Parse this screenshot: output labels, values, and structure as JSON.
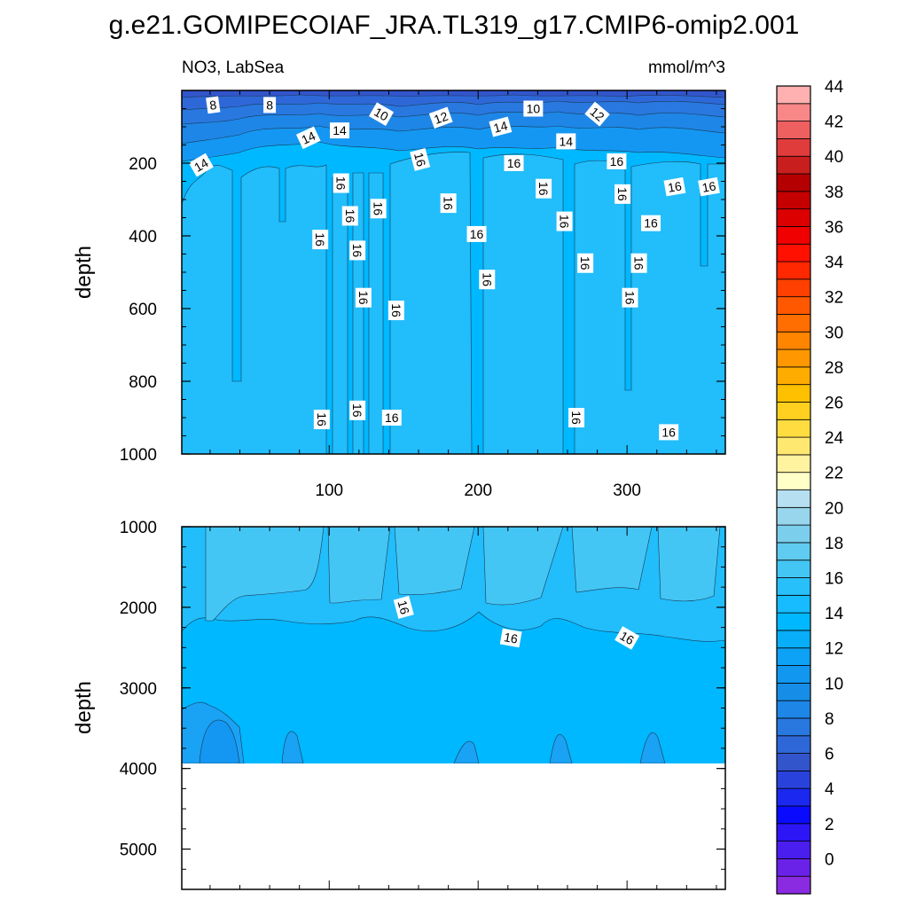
{
  "title": "g.e21.GOMIPECOIAF_JRA.TL319_g17.CMIP6-omip2.001",
  "chart_data": {
    "type": "heatmap",
    "variable_label": "NO3, LabSea",
    "units_label": "mmol/m^3",
    "x_ticks": [
      "100",
      "200",
      "300"
    ],
    "x_tick_values": [
      100,
      200,
      300
    ],
    "xlim": [
      1,
      366
    ],
    "panels": [
      {
        "name": "upper",
        "ylabel": "depth",
        "ylim": [
          0,
          1000
        ],
        "y_ticks": [
          "200",
          "400",
          "600",
          "800",
          "1000"
        ],
        "y_tick_values": [
          200,
          400,
          600,
          800,
          1000
        ],
        "contour_labels": [
          {
            "t": "8",
            "x": 22,
            "y": 40,
            "r": -8
          },
          {
            "t": "8",
            "x": 60,
            "y": 40,
            "r": 0
          },
          {
            "t": "10",
            "x": 135,
            "y": 65,
            "r": 30
          },
          {
            "t": "12",
            "x": 175,
            "y": 75,
            "r": -20
          },
          {
            "t": "10",
            "x": 237,
            "y": 50,
            "r": 0
          },
          {
            "t": "12",
            "x": 280,
            "y": 65,
            "r": 40
          },
          {
            "t": "14",
            "x": 107,
            "y": 110,
            "r": 0
          },
          {
            "t": "14",
            "x": 86,
            "y": 130,
            "r": -25
          },
          {
            "t": "14",
            "x": 215,
            "y": 100,
            "r": -15
          },
          {
            "t": "14",
            "x": 259,
            "y": 140,
            "r": 0
          },
          {
            "t": "14",
            "x": 14,
            "y": 205,
            "r": -30
          },
          {
            "t": "16",
            "x": 161,
            "y": 190,
            "r": 75
          },
          {
            "t": "16",
            "x": 224,
            "y": 200,
            "r": 0
          },
          {
            "t": "16",
            "x": 293,
            "y": 195,
            "r": 0
          },
          {
            "t": "16",
            "x": 108,
            "y": 255,
            "r": 90
          },
          {
            "t": "16",
            "x": 244,
            "y": 270,
            "r": 90
          },
          {
            "t": "16",
            "x": 297,
            "y": 285,
            "r": 90
          },
          {
            "t": "16",
            "x": 332,
            "y": 265,
            "r": -10
          },
          {
            "t": "16",
            "x": 355,
            "y": 265,
            "r": -10
          },
          {
            "t": "16",
            "x": 180,
            "y": 310,
            "r": 90
          },
          {
            "t": "16",
            "x": 133,
            "y": 325,
            "r": 90
          },
          {
            "t": "16",
            "x": 114,
            "y": 345,
            "r": 90
          },
          {
            "t": "16",
            "x": 258,
            "y": 360,
            "r": 90
          },
          {
            "t": "16",
            "x": 316,
            "y": 365,
            "r": 0
          },
          {
            "t": "16",
            "x": 94,
            "y": 410,
            "r": 90
          },
          {
            "t": "16",
            "x": 199,
            "y": 395,
            "r": 0
          },
          {
            "t": "16",
            "x": 119,
            "y": 440,
            "r": 90
          },
          {
            "t": "16",
            "x": 272,
            "y": 475,
            "r": 90
          },
          {
            "t": "16",
            "x": 308,
            "y": 475,
            "r": 90
          },
          {
            "t": "16",
            "x": 206,
            "y": 520,
            "r": 90
          },
          {
            "t": "16",
            "x": 123,
            "y": 570,
            "r": 90
          },
          {
            "t": "16",
            "x": 302,
            "y": 570,
            "r": 90
          },
          {
            "t": "16",
            "x": 145,
            "y": 605,
            "r": 90
          },
          {
            "t": "16",
            "x": 95,
            "y": 905,
            "r": 90
          },
          {
            "t": "16",
            "x": 119,
            "y": 880,
            "r": 90
          },
          {
            "t": "16",
            "x": 142,
            "y": 900,
            "r": 0
          },
          {
            "t": "16",
            "x": 266,
            "y": 900,
            "r": 90
          },
          {
            "t": "16",
            "x": 328,
            "y": 940,
            "r": 0
          }
        ]
      },
      {
        "name": "lower",
        "ylabel": "depth",
        "ylim": [
          1000,
          5500
        ],
        "y_ticks": [
          "1000",
          "2000",
          "3000",
          "4000",
          "5000"
        ],
        "y_tick_values": [
          1000,
          2000,
          3000,
          4000,
          5000
        ],
        "no_data_below": 3870,
        "contour_labels": [
          {
            "t": "16",
            "x": 150,
            "y": 2000,
            "r": 75
          },
          {
            "t": "16",
            "x": 222,
            "y": 2380,
            "r": 10
          },
          {
            "t": "16",
            "x": 300,
            "y": 2380,
            "r": 30
          }
        ]
      }
    ],
    "colorbar": {
      "labels": [
        "0",
        "2",
        "4",
        "6",
        "8",
        "10",
        "12",
        "14",
        "16",
        "18",
        "20",
        "22",
        "24",
        "26",
        "28",
        "30",
        "32",
        "34",
        "36",
        "38",
        "40",
        "42",
        "44"
      ],
      "label_values": [
        0,
        2,
        4,
        6,
        8,
        10,
        12,
        14,
        16,
        18,
        20,
        22,
        24,
        26,
        28,
        30,
        32,
        34,
        36,
        38,
        40,
        42,
        44
      ],
      "colors": [
        "#8a2be2",
        "#6a22e8",
        "#4b1ef0",
        "#2c16f6",
        "#0a0aff",
        "#1a28f0",
        "#2a42dc",
        "#3355cc",
        "#2e68d8",
        "#2878e0",
        "#1e86e6",
        "#168ee8",
        "#1297f0",
        "#0ea2f6",
        "#08aef8",
        "#00b8ff",
        "#16bcff",
        "#28c0fa",
        "#44c6f4",
        "#60cbf0",
        "#7ccfec",
        "#98d6ee",
        "#b6e0f2",
        "#ffffc8",
        "#fff3a0",
        "#ffe870",
        "#ffdc40",
        "#ffd020",
        "#ffc000",
        "#ffac00",
        "#ff9800",
        "#ff8400",
        "#ff6e00",
        "#ff5800",
        "#ff4000",
        "#ff2800",
        "#ff1000",
        "#f00000",
        "#dc0000",
        "#c40000",
        "#b40000",
        "#c81e1e",
        "#e03c3c",
        "#ee6060",
        "#f88888",
        "#ffb0b0"
      ]
    },
    "fill_colors": {
      "c6": "#3355cc",
      "c8": "#2e68d8",
      "c10": "#2878e0",
      "c12": "#1e86e6",
      "c14": "#1497f2",
      "c15": "#00b8ff",
      "c16": "#22bdfb",
      "c17": "#44c6f4",
      "c13": "#1aa2f4"
    }
  }
}
